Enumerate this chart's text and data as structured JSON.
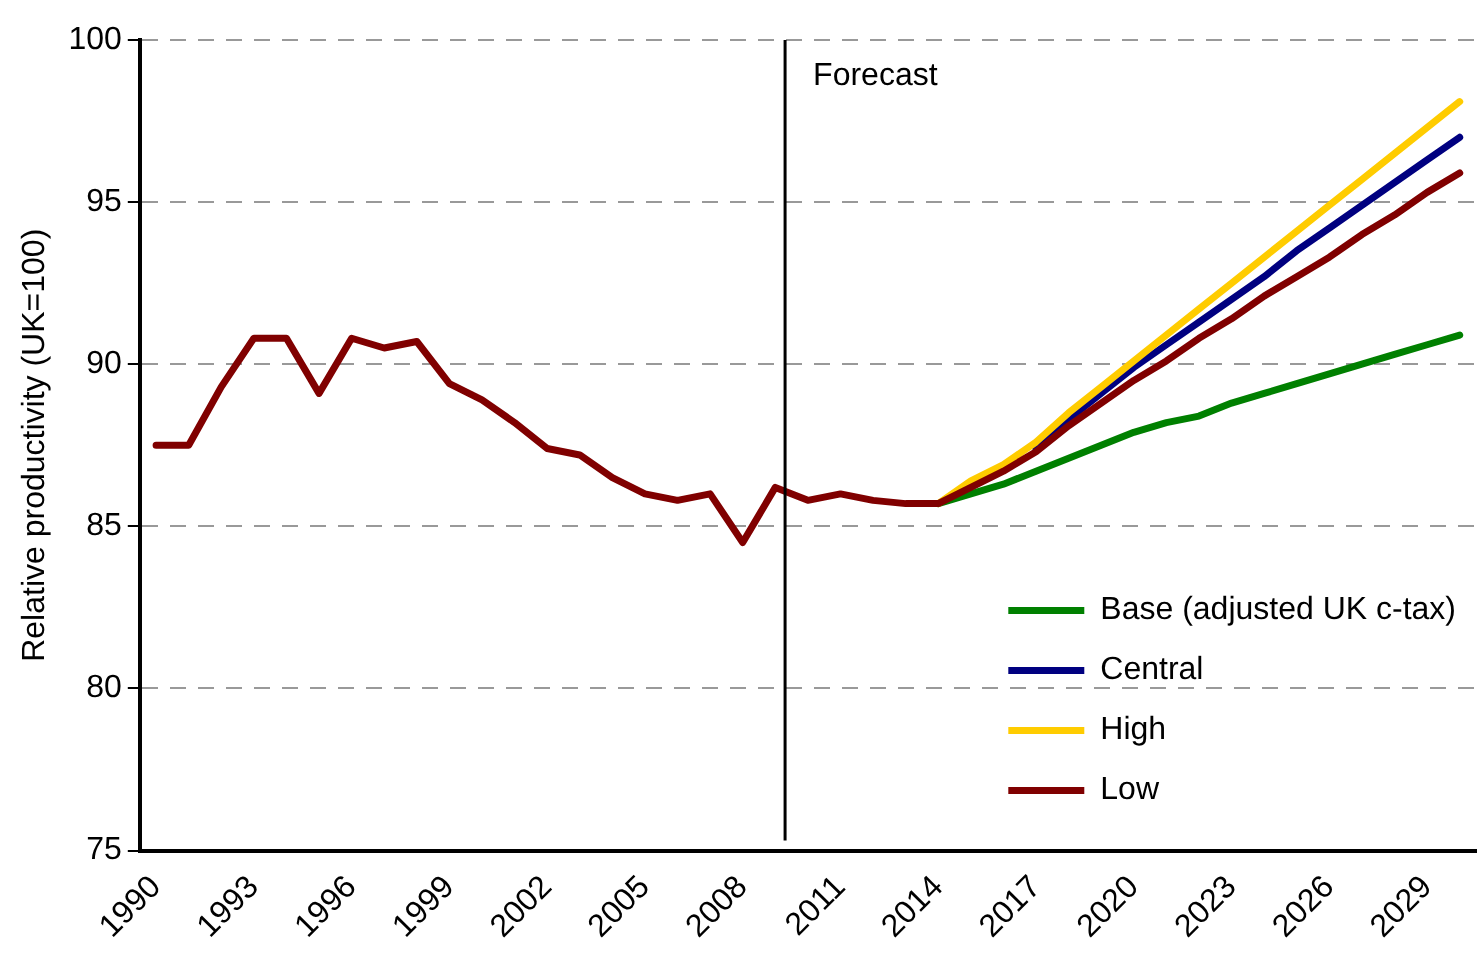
{
  "chart_data": {
    "type": "line",
    "ylabel": "Relative productivity (UK=100)",
    "x": [
      1990,
      1991,
      1992,
      1993,
      1994,
      1995,
      1996,
      1997,
      1998,
      1999,
      2000,
      2001,
      2002,
      2003,
      2004,
      2005,
      2006,
      2007,
      2008,
      2009,
      2010,
      2011,
      2012,
      2013,
      2014,
      2015,
      2016,
      2017,
      2018,
      2019,
      2020,
      2021,
      2022,
      2023,
      2024,
      2025,
      2026,
      2027,
      2028,
      2029,
      2030
    ],
    "series": [
      {
        "name": "Base (adjusted UK c-tax)",
        "color": "#008000",
        "values": [
          null,
          null,
          null,
          null,
          null,
          null,
          null,
          null,
          null,
          null,
          null,
          null,
          null,
          null,
          null,
          null,
          null,
          null,
          null,
          null,
          null,
          null,
          null,
          null,
          85.7,
          86.0,
          86.3,
          86.7,
          87.1,
          87.5,
          87.9,
          88.2,
          88.4,
          88.8,
          89.1,
          89.4,
          89.7,
          90.0,
          90.3,
          90.6,
          90.9
        ]
      },
      {
        "name": "Central",
        "color": "#000080",
        "values": [
          null,
          null,
          null,
          null,
          null,
          null,
          null,
          null,
          null,
          null,
          null,
          null,
          null,
          null,
          null,
          null,
          null,
          null,
          null,
          null,
          null,
          null,
          null,
          null,
          null,
          null,
          null,
          87.4,
          88.3,
          89.1,
          89.9,
          90.6,
          91.3,
          92.0,
          92.7,
          93.5,
          94.2,
          94.9,
          95.6,
          96.3,
          97.0
        ]
      },
      {
        "name": "High",
        "color": "#ffcc00",
        "values": [
          null,
          null,
          null,
          null,
          null,
          null,
          null,
          null,
          null,
          null,
          null,
          null,
          null,
          null,
          null,
          null,
          null,
          null,
          null,
          null,
          null,
          null,
          null,
          null,
          85.7,
          86.4,
          86.9,
          87.6,
          88.5,
          89.3,
          90.1,
          90.9,
          91.7,
          92.5,
          93.3,
          94.1,
          94.9,
          95.7,
          96.5,
          97.3,
          98.1
        ]
      },
      {
        "name": "Low",
        "color": "#800000",
        "values": [
          87.5,
          87.5,
          89.3,
          90.8,
          90.8,
          89.1,
          90.8,
          90.5,
          90.7,
          89.4,
          88.9,
          88.2,
          87.4,
          87.2,
          86.5,
          86.0,
          85.8,
          86.0,
          84.5,
          86.2,
          85.8,
          86.0,
          85.8,
          85.7,
          85.7,
          86.2,
          86.7,
          87.3,
          88.1,
          88.8,
          89.5,
          90.1,
          90.8,
          91.4,
          92.1,
          92.7,
          93.3,
          94.0,
          94.6,
          95.3,
          95.9
        ]
      }
    ],
    "xlim": [
      1989.5,
      2030.5
    ],
    "xticks": [
      1990,
      1993,
      1996,
      1999,
      2002,
      2005,
      2008,
      2011,
      2014,
      2017,
      2020,
      2023,
      2026,
      2029
    ],
    "ylim": [
      75,
      100
    ],
    "yticks": [
      75,
      80,
      85,
      90,
      95,
      100
    ],
    "grid": "y",
    "legend": "bottom right",
    "marker": "none",
    "line_style": "solid",
    "ref_lines": [
      {
        "axis": "x",
        "value": 2009.3,
        "label": "Forecast",
        "color": "#000000"
      }
    ]
  }
}
